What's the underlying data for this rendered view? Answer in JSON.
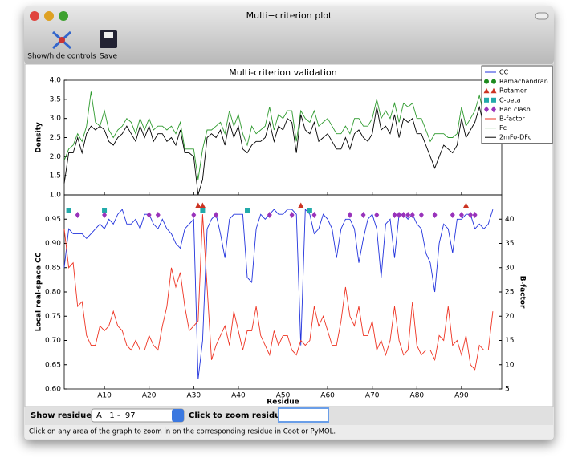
{
  "window": {
    "title": "Multi−criterion plot"
  },
  "toolbar": {
    "items": [
      "Show/hide controls",
      "Save"
    ]
  },
  "chart_data": [
    {
      "type": "line",
      "title": "Multi-criterion validation",
      "ylabel": "Density",
      "x": [
        1,
        2,
        3,
        4,
        5,
        6,
        7,
        8,
        9,
        10,
        11,
        12,
        13,
        14,
        15,
        16,
        17,
        18,
        19,
        20,
        21,
        22,
        23,
        24,
        25,
        26,
        27,
        28,
        29,
        30,
        31,
        32,
        33,
        34,
        35,
        36,
        37,
        38,
        39,
        40,
        41,
        42,
        43,
        44,
        45,
        46,
        47,
        48,
        49,
        50,
        51,
        52,
        53,
        54,
        55,
        56,
        57,
        58,
        59,
        60,
        61,
        62,
        63,
        64,
        65,
        66,
        67,
        68,
        69,
        70,
        71,
        72,
        73,
        74,
        75,
        76,
        77,
        78,
        79,
        80,
        81,
        82,
        83,
        84,
        85,
        86,
        87,
        88,
        89,
        90,
        91,
        92,
        93,
        94,
        95,
        96,
        97
      ],
      "xlim": [
        1,
        99
      ],
      "ylim": [
        1.0,
        4.0
      ],
      "yticks": [
        {
          "value": 1.0,
          "label": "1.0"
        },
        {
          "value": 1.5,
          "label": "1.5"
        },
        {
          "value": 2.0,
          "label": "2.0"
        },
        {
          "value": 2.5,
          "label": "2.5"
        },
        {
          "value": 3.0,
          "label": "3.0"
        },
        {
          "value": 3.5,
          "label": "3.5"
        },
        {
          "value": 4.0,
          "label": "4.0"
        }
      ],
      "series": [
        {
          "name": "Fc",
          "color": "#2e9a2e",
          "values": [
            1.9,
            2.2,
            2.3,
            2.6,
            2.4,
            2.8,
            3.7,
            2.9,
            2.8,
            3.2,
            2.7,
            2.5,
            2.7,
            2.8,
            3.0,
            2.9,
            2.6,
            3.0,
            2.7,
            3.0,
            2.7,
            2.8,
            2.8,
            2.7,
            2.8,
            2.6,
            2.9,
            2.2,
            2.2,
            2.2,
            1.4,
            2.2,
            2.7,
            2.7,
            2.8,
            2.9,
            2.6,
            3.2,
            2.8,
            3.1,
            2.6,
            2.3,
            2.8,
            2.6,
            2.7,
            2.8,
            3.3,
            2.7,
            3.1,
            3.0,
            3.2,
            3.2,
            2.4,
            3.2,
            3.0,
            2.9,
            3.2,
            2.8,
            2.9,
            3.0,
            2.8,
            2.6,
            2.6,
            2.8,
            2.6,
            3.0,
            3.0,
            2.8,
            2.8,
            3.0,
            3.5,
            3.0,
            3.2,
            3.0,
            3.4,
            2.9,
            3.4,
            3.3,
            3.4,
            3.0,
            3.0,
            2.7,
            2.4,
            2.6,
            2.6,
            2.6,
            2.5,
            2.5,
            2.6,
            3.3,
            2.8,
            3.0,
            3.2,
            3.6,
            3.1,
            3.2,
            3.4
          ]
        },
        {
          "name": "2mFo-DFc",
          "color": "#000000",
          "values": [
            1.3,
            2.1,
            2.1,
            2.5,
            2.1,
            2.6,
            2.8,
            2.7,
            2.8,
            2.7,
            2.4,
            2.3,
            2.5,
            2.6,
            2.8,
            2.6,
            2.4,
            2.8,
            2.5,
            2.8,
            2.4,
            2.6,
            2.6,
            2.4,
            2.5,
            2.3,
            2.7,
            2.1,
            2.1,
            2.0,
            1.0,
            1.4,
            2.5,
            2.6,
            2.5,
            2.7,
            2.3,
            2.9,
            2.5,
            2.8,
            2.2,
            2.1,
            2.3,
            2.4,
            2.4,
            2.5,
            2.9,
            2.4,
            2.8,
            2.7,
            3.0,
            2.9,
            2.1,
            3.1,
            2.7,
            2.6,
            2.9,
            2.4,
            2.5,
            2.6,
            2.4,
            2.2,
            2.2,
            2.5,
            2.2,
            2.6,
            2.7,
            2.5,
            2.4,
            2.6,
            3.3,
            2.7,
            2.8,
            2.6,
            3.1,
            2.5,
            3.0,
            2.9,
            3.0,
            2.6,
            2.6,
            2.3,
            2.0,
            1.7,
            2.0,
            2.3,
            2.2,
            2.1,
            2.3,
            3.0,
            2.5,
            2.7,
            2.9,
            3.3,
            2.8,
            2.9,
            3.2
          ]
        }
      ]
    },
    {
      "type": "line",
      "xlabel": "Residue",
      "ylabel": "Local real-space CC",
      "y2label": "B-factor",
      "x": [
        1,
        2,
        3,
        4,
        5,
        6,
        7,
        8,
        9,
        10,
        11,
        12,
        13,
        14,
        15,
        16,
        17,
        18,
        19,
        20,
        21,
        22,
        23,
        24,
        25,
        26,
        27,
        28,
        29,
        30,
        31,
        32,
        33,
        34,
        35,
        36,
        37,
        38,
        39,
        40,
        41,
        42,
        43,
        44,
        45,
        46,
        47,
        48,
        49,
        50,
        51,
        52,
        53,
        54,
        55,
        56,
        57,
        58,
        59,
        60,
        61,
        62,
        63,
        64,
        65,
        66,
        67,
        68,
        69,
        70,
        71,
        72,
        73,
        74,
        75,
        76,
        77,
        78,
        79,
        80,
        81,
        82,
        83,
        84,
        85,
        86,
        87,
        88,
        89,
        90,
        91,
        92,
        93,
        94,
        95,
        96,
        97
      ],
      "xlim": [
        1,
        99
      ],
      "xticks": [
        {
          "value": 10,
          "label": "A10"
        },
        {
          "value": 20,
          "label": "A20"
        },
        {
          "value": 30,
          "label": "A30"
        },
        {
          "value": 40,
          "label": "A40"
        },
        {
          "value": 50,
          "label": "A50"
        },
        {
          "value": 60,
          "label": "A60"
        },
        {
          "value": 70,
          "label": "A70"
        },
        {
          "value": 80,
          "label": "A80"
        },
        {
          "value": 90,
          "label": "A90"
        }
      ],
      "ylim": [
        0.6,
        1.0
      ],
      "yticks": [
        {
          "value": 0.6,
          "label": "0.60"
        },
        {
          "value": 0.65,
          "label": "0.65"
        },
        {
          "value": 0.7,
          "label": "0.70"
        },
        {
          "value": 0.75,
          "label": "0.75"
        },
        {
          "value": 0.8,
          "label": "0.80"
        },
        {
          "value": 0.85,
          "label": "0.85"
        },
        {
          "value": 0.9,
          "label": "0.90"
        },
        {
          "value": 0.95,
          "label": "0.95"
        }
      ],
      "y2lim": [
        5,
        45
      ],
      "y2ticks": [
        5,
        10,
        15,
        20,
        25,
        30,
        35,
        40
      ],
      "series": [
        {
          "name": "CC",
          "color": "#2233dd",
          "values": [
            0.85,
            0.93,
            0.92,
            0.92,
            0.92,
            0.91,
            0.92,
            0.93,
            0.94,
            0.93,
            0.95,
            0.94,
            0.96,
            0.97,
            0.94,
            0.94,
            0.95,
            0.93,
            0.96,
            0.96,
            0.94,
            0.93,
            0.95,
            0.93,
            0.92,
            0.9,
            0.89,
            0.93,
            0.94,
            0.95,
            0.62,
            0.7,
            0.93,
            0.95,
            0.96,
            0.92,
            0.87,
            0.95,
            0.96,
            0.96,
            0.96,
            0.83,
            0.82,
            0.93,
            0.96,
            0.95,
            0.96,
            0.97,
            0.96,
            0.96,
            0.97,
            0.97,
            0.96,
            0.69,
            0.97,
            0.96,
            0.92,
            0.93,
            0.96,
            0.95,
            0.93,
            0.87,
            0.93,
            0.95,
            0.95,
            0.93,
            0.86,
            0.91,
            0.95,
            0.96,
            0.93,
            0.83,
            0.94,
            0.95,
            0.87,
            0.96,
            0.96,
            0.95,
            0.96,
            0.94,
            0.93,
            0.88,
            0.86,
            0.8,
            0.9,
            0.94,
            0.93,
            0.88,
            0.95,
            0.95,
            0.96,
            0.96,
            0.93,
            0.94,
            0.93,
            0.94,
            0.97
          ]
        },
        {
          "name": "Ramachandran",
          "color": "#1e8a1e",
          "marker": "circle",
          "x": []
        },
        {
          "name": "Rotamer",
          "color": "#cc3322",
          "marker": "triangle",
          "x": [
            31,
            32,
            54,
            91
          ]
        },
        {
          "name": "C-beta",
          "color": "#22aaaa",
          "marker": "square",
          "x": [
            2,
            10,
            32,
            42,
            56
          ]
        },
        {
          "name": "Bad clash",
          "color": "#9933bb",
          "marker": "diamond",
          "x": [
            4,
            10,
            20,
            22,
            30,
            35,
            47,
            52,
            57,
            65,
            68,
            71,
            75,
            76,
            77,
            78,
            79,
            81,
            84,
            88,
            90,
            92,
            93
          ]
        },
        {
          "name": "B-factor",
          "color": "#ee3322",
          "axis": "y2",
          "values": [
            38,
            30,
            31,
            22,
            23,
            16,
            14,
            14,
            18,
            17,
            18,
            21,
            18,
            17,
            14,
            13,
            15,
            13,
            13,
            16,
            14,
            13,
            18,
            22,
            30,
            26,
            29,
            22,
            17,
            18,
            19,
            41,
            26,
            11,
            14,
            16,
            18,
            14,
            21,
            17,
            13,
            17,
            17,
            22,
            16,
            14,
            12,
            17,
            14,
            16,
            16,
            13,
            12,
            15,
            14,
            15,
            22,
            18,
            20,
            17,
            14,
            14,
            19,
            26,
            20,
            18,
            22,
            16,
            16,
            19,
            13,
            15,
            12,
            15,
            22,
            15,
            12,
            13,
            23,
            14,
            12,
            13,
            13,
            11,
            16,
            15,
            22,
            14,
            15,
            12,
            16,
            10,
            9,
            14,
            13,
            13,
            21
          ]
        }
      ]
    }
  ],
  "controls": {
    "show_residues_label": "Show residues:",
    "residue_range": "A   1 -  97",
    "zoom_label": "Click to zoom residue:"
  },
  "status": "Click on any area of the graph to zoom in on the corresponding residue in Coot or PyMOL."
}
